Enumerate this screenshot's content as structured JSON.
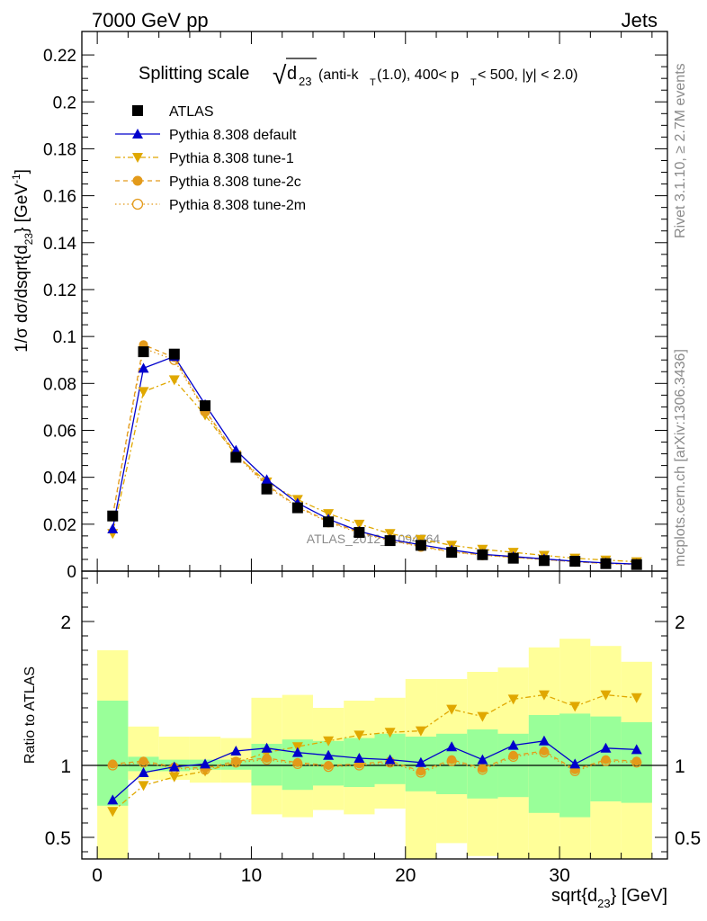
{
  "header": {
    "energy": "7000 GeV pp",
    "process": "Jets"
  },
  "side_labels": {
    "rivet": "Rivet 3.1.10, ≥ 2.7M events",
    "mcplots": "mcplots.cern.ch [arXiv:1306.3436]"
  },
  "watermark": "ATLAS_2012_I1094564",
  "colors": {
    "atlas": "#000000",
    "default": "#0000cc",
    "tune": "#e0a800",
    "tune2": "#e39a1a",
    "band_stat": "#99ff99",
    "band_total": "#ffff99"
  },
  "chart_data": [
    {
      "type": "scatter",
      "panel": "main",
      "title": {
        "prefix": "Splitting scale",
        "sqrt_symbol": "√",
        "d_main": "d",
        "d_sub": "23",
        "cond1": " (anti-k",
        "cond1_sub": "T",
        "cond2": "(1.0), 400< p",
        "cond2_sub": "T",
        "cond3": " < 500, |y| < 2.0)"
      },
      "ylabel": {
        "p1": "1/σ dσ/dsqrt{d",
        "p1_sub": "23",
        "p2": "} [GeV",
        "p2_sup": "-1",
        "p3": "]"
      },
      "xlim": [
        -1,
        37
      ],
      "ylim": [
        0,
        0.23
      ],
      "y_ticks": [
        0,
        0.02,
        0.04,
        0.06,
        0.08,
        0.1,
        0.12,
        0.14,
        0.16,
        0.18,
        0.2,
        0.22
      ],
      "y_tick_labels": [
        "0",
        "0.02",
        "0.04",
        "0.06",
        "0.08",
        "0.1",
        "0.12",
        "0.14",
        "0.16",
        "0.18",
        "0.2",
        "0.22"
      ],
      "x": [
        1,
        3,
        5,
        7,
        9,
        11,
        13,
        15,
        17,
        19,
        21,
        23,
        25,
        27,
        29,
        31,
        33,
        35
      ],
      "series": [
        {
          "name": "ATLAS",
          "marker": "square",
          "values": [
            0.0235,
            0.0935,
            0.0925,
            0.0705,
            0.0485,
            0.035,
            0.027,
            0.021,
            0.0165,
            0.013,
            0.011,
            0.008,
            0.007,
            0.0055,
            0.0045,
            0.0042,
            0.0032,
            0.0028
          ]
        },
        {
          "name": "Pythia 8.308 default",
          "marker": "triangle-up",
          "values": [
            0.018,
            0.0865,
            0.0915,
            0.071,
            0.0515,
            0.039,
            0.029,
            0.0222,
            0.017,
            0.0135,
            0.0112,
            0.009,
            0.0072,
            0.0062,
            0.0052,
            0.0042,
            0.0035,
            0.003
          ]
        },
        {
          "name": "Pythia 8.308 tune-1",
          "marker": "triangle-down",
          "values": [
            0.016,
            0.0765,
            0.0815,
            0.0665,
            0.0495,
            0.038,
            0.0305,
            0.0245,
            0.02,
            0.016,
            0.0135,
            0.011,
            0.0093,
            0.008,
            0.0067,
            0.0055,
            0.0047,
            0.004
          ]
        },
        {
          "name": "Pythia 8.308 tune-2c",
          "marker": "circle",
          "values": [
            0.0236,
            0.0965,
            0.091,
            0.0685,
            0.05,
            0.0368,
            0.0276,
            0.0212,
            0.0167,
            0.0134,
            0.0106,
            0.0083,
            0.0069,
            0.0059,
            0.005,
            0.004,
            0.0033,
            0.0029
          ]
        },
        {
          "name": "Pythia 8.308 tune-2m",
          "marker": "circle-open",
          "values": [
            0.0234,
            0.095,
            0.09,
            0.068,
            0.0495,
            0.0362,
            0.0272,
            0.0208,
            0.0163,
            0.013,
            0.0104,
            0.0081,
            0.0068,
            0.0058,
            0.0049,
            0.004,
            0.0032,
            0.0028
          ]
        }
      ]
    },
    {
      "type": "line",
      "panel": "ratio",
      "ylabel": "Ratio to ATLAS",
      "xlabel": {
        "p1": "sqrt{d",
        "p1_sub": "23",
        "p2": "} [GeV]"
      },
      "xlim": [
        -1,
        37
      ],
      "ylim": [
        0.35,
        2.35
      ],
      "x_ticks": [
        0,
        10,
        20,
        30
      ],
      "x_tick_labels": [
        "0",
        "10",
        "20",
        "30"
      ],
      "y_ticks": [
        0.5,
        1,
        2
      ],
      "y_tick_labels": [
        "0.5",
        "1",
        "2"
      ],
      "x_edges": [
        0,
        2,
        4,
        6,
        8,
        10,
        12,
        14,
        16,
        18,
        20,
        22,
        24,
        26,
        28,
        30,
        32,
        34,
        36
      ],
      "band_stat": {
        "lo": [
          0.72,
          0.96,
          0.96,
          0.97,
          0.97,
          0.86,
          0.83,
          0.86,
          0.85,
          0.87,
          0.82,
          0.8,
          0.77,
          0.78,
          0.67,
          0.64,
          0.75,
          0.74
        ],
        "hi": [
          1.45,
          1.06,
          1.04,
          1.04,
          1.04,
          1.15,
          1.18,
          1.17,
          1.19,
          1.22,
          1.2,
          1.22,
          1.25,
          1.22,
          1.35,
          1.36,
          1.34,
          1.3
        ]
      },
      "band_total": {
        "lo": [
          0.35,
          0.9,
          0.9,
          0.88,
          0.88,
          0.66,
          0.64,
          0.69,
          0.66,
          0.7,
          0.35,
          0.46,
          0.37,
          0.35,
          0.35,
          0.35,
          0.35,
          0.35
        ]
      },
      "band_total_hi": [
        1.8,
        1.27,
        1.2,
        1.2,
        1.19,
        1.47,
        1.49,
        1.4,
        1.45,
        1.47,
        1.6,
        1.6,
        1.65,
        1.68,
        1.82,
        1.88,
        1.83,
        1.72
      ],
      "series": [
        {
          "name": "Pythia 8.308 default",
          "values": [
            0.76,
            0.95,
            0.99,
            1.01,
            1.1,
            1.12,
            1.09,
            1.07,
            1.05,
            1.04,
            1.02,
            1.13,
            1.04,
            1.14,
            1.17,
            1.01,
            1.12,
            1.11
          ]
        },
        {
          "name": "Pythia 8.308 tune-1",
          "values": [
            0.68,
            0.86,
            0.92,
            0.96,
            1.02,
            1.09,
            1.13,
            1.17,
            1.21,
            1.23,
            1.24,
            1.39,
            1.34,
            1.46,
            1.49,
            1.41,
            1.49,
            1.47
          ]
        },
        {
          "name": "Pythia 8.308 tune-2c",
          "values": [
            1.01,
            1.03,
            0.99,
            0.98,
            1.03,
            1.05,
            1.02,
            1.0,
            1.01,
            1.03,
            0.96,
            1.04,
            0.98,
            1.07,
            1.1,
            0.97,
            1.04,
            1.03
          ]
        },
        {
          "name": "Pythia 8.308 tune-2m",
          "values": [
            1.0,
            1.02,
            0.98,
            0.97,
            1.02,
            1.04,
            1.01,
            0.99,
            1.0,
            1.02,
            0.95,
            1.03,
            0.97,
            1.06,
            1.09,
            0.96,
            1.03,
            1.02
          ]
        }
      ]
    }
  ]
}
